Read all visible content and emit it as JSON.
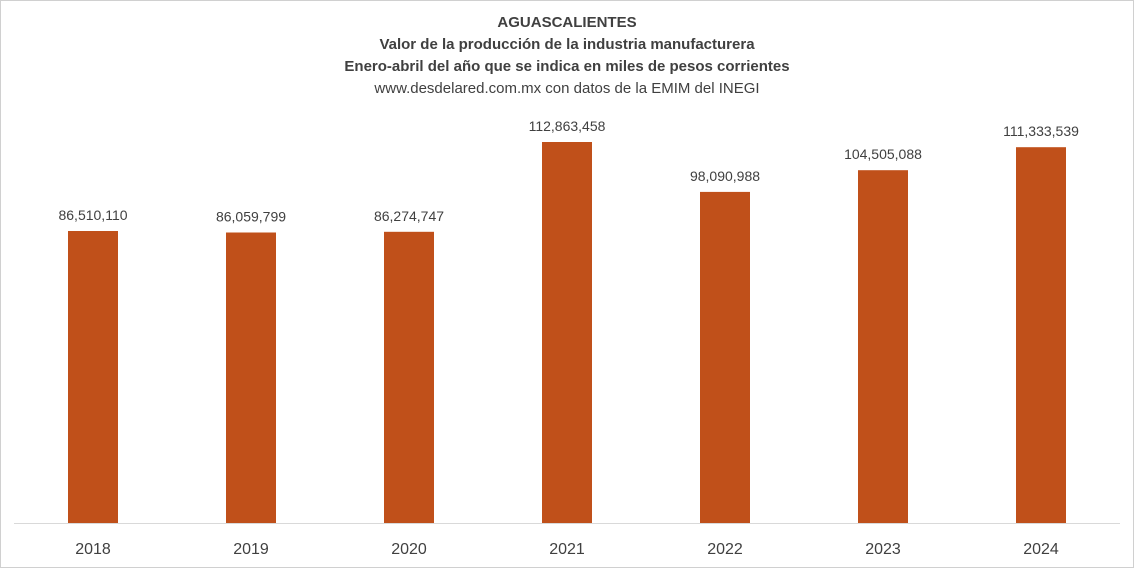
{
  "chart_data": {
    "type": "bar",
    "title": "AGUASCALIENTES",
    "subtitle_lines": [
      "Valor de la producción de la industria manufacturera",
      "Enero-abril del año que se indica en miles de pesos corrientes"
    ],
    "source": "www.desdelared.com.mx con datos de la EMIM del INEGI",
    "categories": [
      "2018",
      "2019",
      "2020",
      "2021",
      "2022",
      "2023",
      "2024"
    ],
    "values": [
      86510110,
      86059799,
      86274747,
      112863458,
      98090988,
      104505088,
      111333539
    ],
    "value_labels": [
      "86,510,110",
      "86,059,799",
      "86,274,747",
      "112,863,458",
      "98,090,988",
      "104,505,088",
      "111,333,539"
    ],
    "ylim": [
      0,
      130000000
    ],
    "grid": false,
    "legend": "none",
    "bar_color": "#c0501a"
  }
}
